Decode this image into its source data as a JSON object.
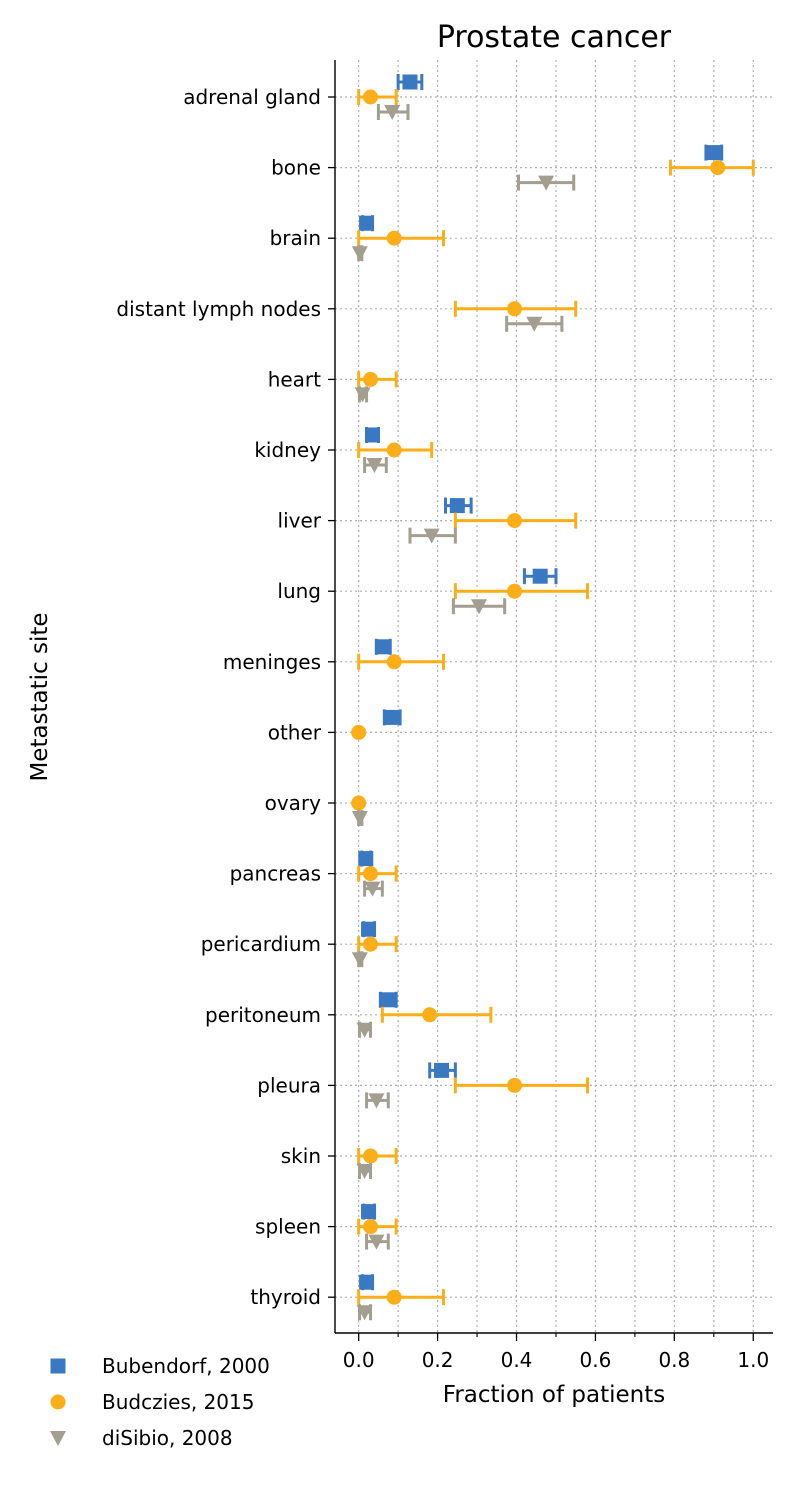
{
  "chart_data": {
    "type": "scatter",
    "title": "Prostate cancer",
    "xlabel": "Fraction of patients",
    "ylabel": "Metastatic site",
    "xlim": [
      -0.06,
      1.05
    ],
    "xticks": [
      0.0,
      0.2,
      0.4,
      0.6,
      0.8,
      1.0
    ],
    "xtick_labels": [
      "0.0",
      "0.2",
      "0.4",
      "0.6",
      "0.8",
      "1.0"
    ],
    "grid": true,
    "legend_placement": "bottom-left",
    "categories": [
      "adrenal gland",
      "bone",
      "brain",
      "distant lymph nodes",
      "heart",
      "kidney",
      "liver",
      "lung",
      "meninges",
      "other",
      "ovary",
      "pancreas",
      "pericardium",
      "peritoneum",
      "pleura",
      "skin",
      "spleen",
      "thyroid"
    ],
    "series": [
      {
        "name": "Bubendorf, 2000",
        "color": "#3a78c2",
        "marker": "square",
        "points": [
          {
            "cat": "adrenal gland",
            "x": 0.13,
            "lo": 0.1,
            "hi": 0.16
          },
          {
            "cat": "bone",
            "x": 0.9,
            "lo": 0.88,
            "hi": 0.92
          },
          {
            "cat": "brain",
            "x": 0.02,
            "lo": 0.01,
            "hi": 0.035
          },
          {
            "cat": "kidney",
            "x": 0.035,
            "lo": 0.02,
            "hi": 0.05
          },
          {
            "cat": "liver",
            "x": 0.25,
            "lo": 0.22,
            "hi": 0.285
          },
          {
            "cat": "lung",
            "x": 0.46,
            "lo": 0.42,
            "hi": 0.5
          },
          {
            "cat": "meninges",
            "x": 0.06,
            "lo": 0.045,
            "hi": 0.08
          },
          {
            "cat": "other",
            "x": 0.085,
            "lo": 0.065,
            "hi": 0.105
          },
          {
            "cat": "pancreas",
            "x": 0.018,
            "lo": 0.008,
            "hi": 0.03
          },
          {
            "cat": "pericardium",
            "x": 0.025,
            "lo": 0.013,
            "hi": 0.04
          },
          {
            "cat": "peritoneum",
            "x": 0.075,
            "lo": 0.055,
            "hi": 0.095
          },
          {
            "cat": "pleura",
            "x": 0.21,
            "lo": 0.18,
            "hi": 0.245
          },
          {
            "cat": "spleen",
            "x": 0.025,
            "lo": 0.013,
            "hi": 0.04
          },
          {
            "cat": "thyroid",
            "x": 0.02,
            "lo": 0.01,
            "hi": 0.035
          }
        ]
      },
      {
        "name": "Budczies, 2015",
        "color": "#fbae17",
        "marker": "circle",
        "points": [
          {
            "cat": "adrenal gland",
            "x": 0.03,
            "lo": 0.0,
            "hi": 0.095
          },
          {
            "cat": "bone",
            "x": 0.91,
            "lo": 0.79,
            "hi": 1.0
          },
          {
            "cat": "brain",
            "x": 0.09,
            "lo": 0.0,
            "hi": 0.215
          },
          {
            "cat": "distant lymph nodes",
            "x": 0.395,
            "lo": 0.245,
            "hi": 0.55
          },
          {
            "cat": "heart",
            "x": 0.03,
            "lo": 0.0,
            "hi": 0.095
          },
          {
            "cat": "kidney",
            "x": 0.09,
            "lo": 0.0,
            "hi": 0.185
          },
          {
            "cat": "liver",
            "x": 0.395,
            "lo": 0.245,
            "hi": 0.55
          },
          {
            "cat": "lung",
            "x": 0.395,
            "lo": 0.245,
            "hi": 0.58
          },
          {
            "cat": "meninges",
            "x": 0.09,
            "lo": 0.0,
            "hi": 0.215
          },
          {
            "cat": "other",
            "x": 0.0,
            "lo": 0.0,
            "hi": 0.0
          },
          {
            "cat": "ovary",
            "x": 0.0,
            "lo": 0.0,
            "hi": 0.0
          },
          {
            "cat": "pancreas",
            "x": 0.03,
            "lo": 0.0,
            "hi": 0.095
          },
          {
            "cat": "pericardium",
            "x": 0.03,
            "lo": 0.0,
            "hi": 0.095
          },
          {
            "cat": "peritoneum",
            "x": 0.18,
            "lo": 0.06,
            "hi": 0.335
          },
          {
            "cat": "pleura",
            "x": 0.395,
            "lo": 0.245,
            "hi": 0.58
          },
          {
            "cat": "skin",
            "x": 0.03,
            "lo": 0.0,
            "hi": 0.095
          },
          {
            "cat": "spleen",
            "x": 0.03,
            "lo": 0.0,
            "hi": 0.095
          },
          {
            "cat": "thyroid",
            "x": 0.09,
            "lo": 0.0,
            "hi": 0.215
          }
        ]
      },
      {
        "name": "diSibio, 2008",
        "color": "#a39e8f",
        "marker": "triangle-down",
        "points": [
          {
            "cat": "adrenal gland",
            "x": 0.085,
            "lo": 0.05,
            "hi": 0.125
          },
          {
            "cat": "bone",
            "x": 0.475,
            "lo": 0.405,
            "hi": 0.545
          },
          {
            "cat": "brain",
            "x": 0.003,
            "lo": 0.0,
            "hi": 0.008
          },
          {
            "cat": "distant lymph nodes",
            "x": 0.445,
            "lo": 0.375,
            "hi": 0.515
          },
          {
            "cat": "heart",
            "x": 0.01,
            "lo": 0.002,
            "hi": 0.02
          },
          {
            "cat": "kidney",
            "x": 0.04,
            "lo": 0.015,
            "hi": 0.07
          },
          {
            "cat": "liver",
            "x": 0.185,
            "lo": 0.13,
            "hi": 0.245
          },
          {
            "cat": "lung",
            "x": 0.305,
            "lo": 0.24,
            "hi": 0.37
          },
          {
            "cat": "ovary",
            "x": 0.003,
            "lo": 0.0,
            "hi": 0.008
          },
          {
            "cat": "pancreas",
            "x": 0.035,
            "lo": 0.015,
            "hi": 0.06
          },
          {
            "cat": "pericardium",
            "x": 0.003,
            "lo": 0.0,
            "hi": 0.008
          },
          {
            "cat": "peritoneum",
            "x": 0.015,
            "lo": 0.002,
            "hi": 0.03
          },
          {
            "cat": "pleura",
            "x": 0.045,
            "lo": 0.02,
            "hi": 0.075
          },
          {
            "cat": "skin",
            "x": 0.015,
            "lo": 0.002,
            "hi": 0.03
          },
          {
            "cat": "spleen",
            "x": 0.045,
            "lo": 0.02,
            "hi": 0.075
          },
          {
            "cat": "thyroid",
            "x": 0.015,
            "lo": 0.002,
            "hi": 0.03
          }
        ]
      }
    ]
  }
}
